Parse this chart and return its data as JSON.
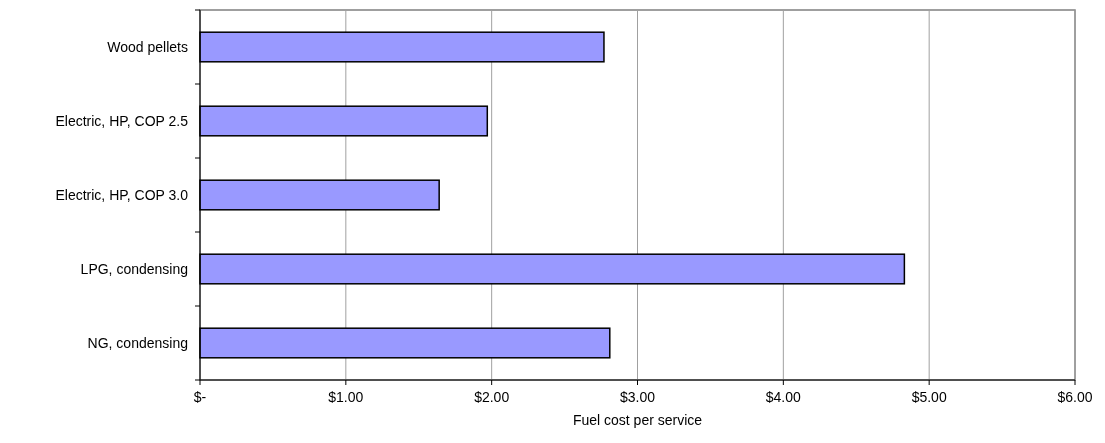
{
  "chart_data": {
    "type": "bar",
    "orientation": "horizontal",
    "xlabel": "Fuel cost per service",
    "categories": [
      "Wood pellets",
      "Electric, HP, COP 2.5",
      "Electric, HP, COP 3.0",
      "LPG, condensing",
      "NG, condensing"
    ],
    "values": [
      2.77,
      1.97,
      1.64,
      4.83,
      2.81
    ],
    "color": "#9999ff",
    "xlim": [
      0,
      6
    ],
    "xticks": [
      {
        "value": 0,
        "label": "$-"
      },
      {
        "value": 1,
        "label": "$1.00"
      },
      {
        "value": 2,
        "label": "$2.00"
      },
      {
        "value": 3,
        "label": "$3.00"
      },
      {
        "value": 4,
        "label": "$4.00"
      },
      {
        "value": 5,
        "label": "$5.00"
      },
      {
        "value": 6,
        "label": "$6.00"
      }
    ],
    "grid": "x"
  }
}
